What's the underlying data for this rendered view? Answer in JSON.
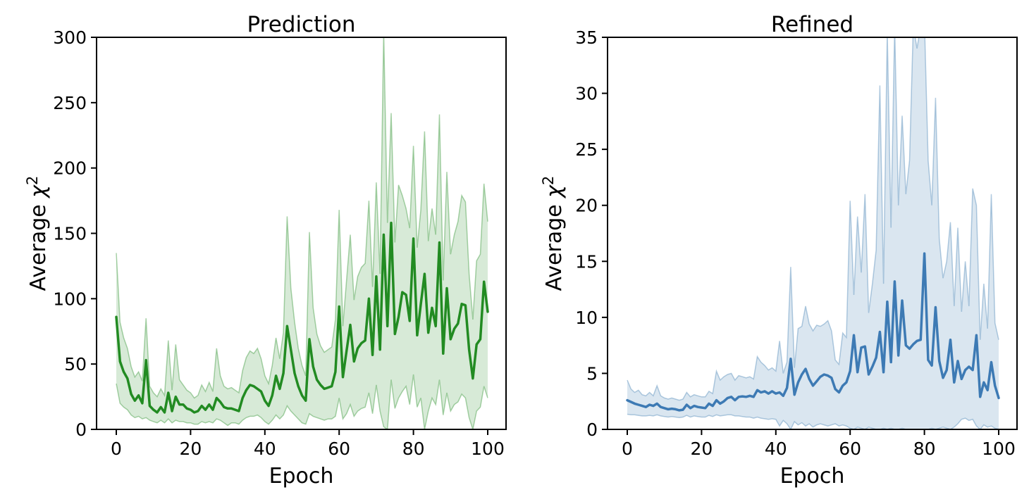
{
  "figure": {
    "background": "#ffffff",
    "text_color": "#000000",
    "spine_color": "#000000"
  },
  "chart_data": [
    {
      "id": "prediction",
      "type": "line",
      "title": "Prediction",
      "xlabel": "Epoch",
      "ylabel": "Average χ²",
      "ylabel_prefix": "Average ",
      "ylabel_symbol": "χ",
      "ylabel_sup": "2",
      "legend": "none",
      "grid": false,
      "line_color": "#228B22",
      "band_fill_color": "rgba(34,139,34,0.18)",
      "band_edge_color": "rgba(34,139,34,0.38)",
      "xlim": [
        -5.5,
        105.5
      ],
      "ylim": [
        0,
        300
      ],
      "xticks": [
        0,
        20,
        40,
        60,
        80,
        100
      ],
      "xticklabels": [
        "0",
        "20",
        "40",
        "60",
        "80",
        "100"
      ],
      "yticks": [
        0,
        50,
        100,
        150,
        200,
        250,
        300
      ],
      "yticklabels": [
        "0",
        "50",
        "100",
        "150",
        "200",
        "250",
        "300"
      ],
      "x": [
        0,
        1,
        2,
        3,
        4,
        5,
        6,
        7,
        8,
        9,
        10,
        11,
        12,
        13,
        14,
        15,
        16,
        17,
        18,
        19,
        20,
        21,
        22,
        23,
        24,
        25,
        26,
        27,
        28,
        29,
        30,
        31,
        32,
        33,
        34,
        35,
        36,
        37,
        38,
        39,
        40,
        41,
        42,
        43,
        44,
        45,
        46,
        47,
        48,
        49,
        50,
        51,
        52,
        53,
        54,
        55,
        56,
        57,
        58,
        59,
        60,
        61,
        62,
        63,
        64,
        65,
        66,
        67,
        68,
        69,
        70,
        71,
        72,
        73,
        74,
        75,
        76,
        77,
        78,
        79,
        80,
        81,
        82,
        83,
        84,
        85,
        86,
        87,
        88,
        89,
        90,
        91,
        92,
        93,
        94,
        95,
        96,
        97,
        98,
        99,
        100
      ],
      "mean": [
        86,
        52,
        44,
        39,
        27,
        22,
        26,
        20,
        53,
        18,
        15,
        13,
        17,
        13,
        28,
        14,
        25,
        19,
        19,
        16,
        15,
        13,
        14,
        18,
        15,
        19,
        15,
        24,
        21,
        17,
        16,
        16,
        15,
        14,
        24,
        30,
        34,
        33,
        31,
        29,
        22,
        18,
        26,
        41,
        31,
        43,
        79,
        61,
        43,
        33,
        26,
        22,
        69,
        48,
        38,
        34,
        31,
        32,
        33,
        44,
        94,
        40,
        60,
        80,
        52,
        62,
        66,
        68,
        100,
        57,
        117,
        61,
        149,
        79,
        158,
        73,
        86,
        105,
        103,
        83,
        146,
        72,
        96,
        119,
        74,
        93,
        79,
        143,
        58,
        108,
        69,
        77,
        81,
        96,
        95,
        61,
        39,
        65,
        69,
        113,
        90
      ],
      "band_lower": [
        35,
        20,
        17,
        15,
        11,
        9,
        10,
        8,
        9,
        7,
        6,
        5,
        7,
        5,
        8,
        5,
        7,
        6,
        6,
        5,
        5,
        4,
        4,
        6,
        5,
        6,
        5,
        8,
        7,
        5,
        3,
        5,
        5,
        4,
        7,
        9,
        10,
        10,
        11,
        9,
        6,
        4,
        7,
        11,
        8,
        11,
        18,
        14,
        11,
        8,
        5,
        4,
        12,
        10,
        9,
        8,
        7,
        8,
        8,
        10,
        24,
        8,
        12,
        19,
        10,
        14,
        16,
        17,
        28,
        12,
        34,
        14,
        2,
        0,
        38,
        16,
        24,
        29,
        33,
        19,
        42,
        17,
        24,
        0,
        14,
        24,
        19,
        38,
        11,
        28,
        14,
        19,
        21,
        27,
        24,
        9,
        0,
        14,
        17,
        33,
        24
      ],
      "band_upper": [
        135,
        82,
        70,
        62,
        48,
        40,
        44,
        37,
        85,
        33,
        28,
        25,
        31,
        26,
        68,
        30,
        65,
        38,
        34,
        30,
        28,
        24,
        26,
        34,
        29,
        36,
        29,
        62,
        41,
        33,
        31,
        32,
        30,
        28,
        45,
        55,
        60,
        58,
        62,
        54,
        41,
        35,
        49,
        70,
        54,
        74,
        163,
        108,
        82,
        62,
        49,
        41,
        151,
        93,
        73,
        64,
        59,
        61,
        63,
        84,
        168,
        79,
        114,
        149,
        99,
        117,
        124,
        127,
        175,
        109,
        189,
        119,
        305,
        158,
        242,
        143,
        187,
        179,
        169,
        154,
        217,
        139,
        168,
        228,
        144,
        169,
        149,
        241,
        114,
        197,
        134,
        149,
        159,
        179,
        174,
        119,
        84,
        129,
        134,
        188,
        159
      ]
    },
    {
      "id": "refined",
      "type": "line",
      "title": "Refined",
      "xlabel": "Epoch",
      "ylabel": "Average χ²",
      "ylabel_prefix": "Average ",
      "ylabel_symbol": "χ",
      "ylabel_sup": "2",
      "legend": "none",
      "grid": false,
      "line_color": "#3D7AB4",
      "band_fill_color": "rgba(70,130,180,0.20)",
      "band_edge_color": "rgba(70,130,180,0.40)",
      "xlim": [
        -5.5,
        105.5
      ],
      "ylim": [
        0,
        35
      ],
      "xticks": [
        0,
        20,
        40,
        60,
        80,
        100
      ],
      "xticklabels": [
        "0",
        "20",
        "40",
        "60",
        "80",
        "100"
      ],
      "yticks": [
        0,
        5,
        10,
        15,
        20,
        25,
        30,
        35
      ],
      "yticklabels": [
        "0",
        "5",
        "10",
        "15",
        "20",
        "25",
        "30",
        "35"
      ],
      "x": [
        0,
        1,
        2,
        3,
        4,
        5,
        6,
        7,
        8,
        9,
        10,
        11,
        12,
        13,
        14,
        15,
        16,
        17,
        18,
        19,
        20,
        21,
        22,
        23,
        24,
        25,
        26,
        27,
        28,
        29,
        30,
        31,
        32,
        33,
        34,
        35,
        36,
        37,
        38,
        39,
        40,
        41,
        42,
        43,
        44,
        45,
        46,
        47,
        48,
        49,
        50,
        51,
        52,
        53,
        54,
        55,
        56,
        57,
        58,
        59,
        60,
        61,
        62,
        63,
        64,
        65,
        66,
        67,
        68,
        69,
        70,
        71,
        72,
        73,
        74,
        75,
        76,
        77,
        78,
        79,
        80,
        81,
        82,
        83,
        84,
        85,
        86,
        87,
        88,
        89,
        90,
        91,
        92,
        93,
        94,
        95,
        96,
        97,
        98,
        99,
        100
      ],
      "mean": [
        2.6,
        2.45,
        2.3,
        2.2,
        2.1,
        2.0,
        2.2,
        2.1,
        2.3,
        2.0,
        1.9,
        1.8,
        1.85,
        1.8,
        1.7,
        1.75,
        2.2,
        1.9,
        2.1,
        2.0,
        1.95,
        1.9,
        2.3,
        2.1,
        2.6,
        2.3,
        2.5,
        2.8,
        2.9,
        2.6,
        2.9,
        2.95,
        2.9,
        3.0,
        2.9,
        3.5,
        3.3,
        3.4,
        3.2,
        3.4,
        3.2,
        3.3,
        3.0,
        3.7,
        6.3,
        3.1,
        4.2,
        4.9,
        5.4,
        4.5,
        3.9,
        4.3,
        4.7,
        4.9,
        4.8,
        4.6,
        3.6,
        3.3,
        3.9,
        4.2,
        5.2,
        8.4,
        5.1,
        7.3,
        7.4,
        4.9,
        5.6,
        6.4,
        8.7,
        5.1,
        11.4,
        6.0,
        13.2,
        6.6,
        11.5,
        7.5,
        7.2,
        7.6,
        7.9,
        8.0,
        15.7,
        6.2,
        5.7,
        10.9,
        6.1,
        4.6,
        5.3,
        8.0,
        4.2,
        6.1,
        4.5,
        5.3,
        5.6,
        5.3,
        8.4,
        2.9,
        4.2,
        3.5,
        6.0,
        3.9,
        2.8
      ],
      "band_lower": [
        1.35,
        1.3,
        1.3,
        1.25,
        1.2,
        1.2,
        1.25,
        1.2,
        1.3,
        1.2,
        1.15,
        1.1,
        1.15,
        1.1,
        1.05,
        1.1,
        1.25,
        1.1,
        1.2,
        1.15,
        1.1,
        1.1,
        1.25,
        1.15,
        1.3,
        1.2,
        1.25,
        1.3,
        1.3,
        1.2,
        1.2,
        1.15,
        1.1,
        1.1,
        1.0,
        1.1,
        1.0,
        0.95,
        0.9,
        0.95,
        0.9,
        0.3,
        0.8,
        0.5,
        0.0,
        0.7,
        0.4,
        0.6,
        0.3,
        0.5,
        0.2,
        0.4,
        0.5,
        0.4,
        0.3,
        0.4,
        0.5,
        0.3,
        0.4,
        0.3,
        0.1,
        0.0,
        0.2,
        0.1,
        0.0,
        0.2,
        0.1,
        0.0,
        0.0,
        0.1,
        0.0,
        0.1,
        0.0,
        0.0,
        0.1,
        0.0,
        0.0,
        0.0,
        0.0,
        0.0,
        0.0,
        0.0,
        0.1,
        0.0,
        0.1,
        0.2,
        0.1,
        0.0,
        0.2,
        0.5,
        0.9,
        1.0,
        0.8,
        0.9,
        0.3,
        0.0,
        0.4,
        0.2,
        0.3,
        0.1,
        0.0
      ],
      "band_upper": [
        4.4,
        3.6,
        3.3,
        3.5,
        3.1,
        3.0,
        3.3,
        3.0,
        3.9,
        3.0,
        2.8,
        2.7,
        2.8,
        2.7,
        2.6,
        2.7,
        3.3,
        2.9,
        3.1,
        3.0,
        2.9,
        2.9,
        3.4,
        3.2,
        5.2,
        4.4,
        4.7,
        4.9,
        5.0,
        4.4,
        4.8,
        4.7,
        4.6,
        4.7,
        4.5,
        6.5,
        6.0,
        5.7,
        5.3,
        5.5,
        5.2,
        7.9,
        5.0,
        6.0,
        14.5,
        5.5,
        9.0,
        9.2,
        11.0,
        9.4,
        8.8,
        9.3,
        9.2,
        9.4,
        9.7,
        8.8,
        6.2,
        5.8,
        8.6,
        8.2,
        20.4,
        12.0,
        19.0,
        14.0,
        21.0,
        10.4,
        13.0,
        16.0,
        30.7,
        13.0,
        35.5,
        18.0,
        36.0,
        20.0,
        28.0,
        21.0,
        24.0,
        36.0,
        34.0,
        36.0,
        36.5,
        24.0,
        20.0,
        29.6,
        17.0,
        13.5,
        15.0,
        18.5,
        11.0,
        18.0,
        10.5,
        15.0,
        11.0,
        21.5,
        20.0,
        8.0,
        13.0,
        9.0,
        21.0,
        9.5,
        8.0
      ]
    }
  ]
}
